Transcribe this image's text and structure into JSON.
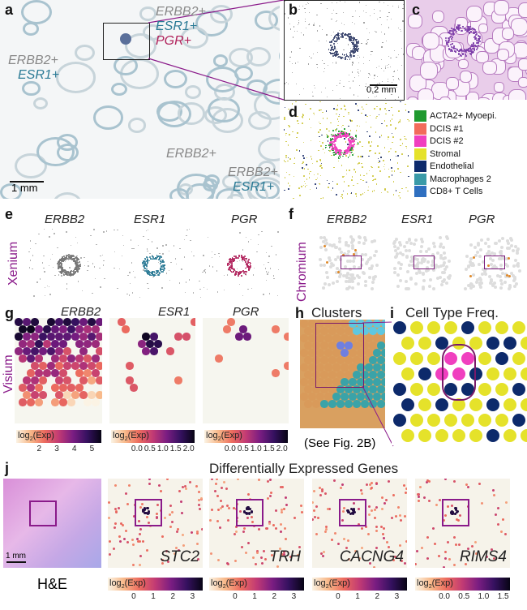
{
  "panel_labels": {
    "a": "a",
    "b": "b",
    "c": "c",
    "d": "d",
    "e": "e",
    "f": "f",
    "g": "g",
    "h": "h",
    "i": "i",
    "j": "j"
  },
  "panel_a": {
    "inset_labels": [
      "ERBB2+",
      "ESR1+",
      "PGR+"
    ],
    "region1": [
      "ERBB2+",
      "ESR1+"
    ],
    "region2": "ERBB2+",
    "region3": [
      "ERBB2+",
      "ESR1+"
    ],
    "scale": "1 mm"
  },
  "panel_b": {
    "scale": "0.2 mm"
  },
  "panel_d": {
    "legend": [
      {
        "label": "ACTA2+ Myoepi.",
        "color": "#1f9a2f"
      },
      {
        "label": "DCIS #1",
        "color": "#f26b5b"
      },
      {
        "label": "DCIS #2",
        "color": "#f03fbf"
      },
      {
        "label": "Stromal",
        "color": "#e5e22a"
      },
      {
        "label": "Endothelial",
        "color": "#0d2a6b"
      },
      {
        "label": "Macrophages 2",
        "color": "#3a9aa8"
      },
      {
        "label": "CD8+ T Cells",
        "color": "#2f6fc0"
      }
    ]
  },
  "panel_e": {
    "platform": "Xenium",
    "genes": [
      "ERBB2",
      "ESR1",
      "PGR"
    ]
  },
  "panel_f": {
    "platform": "Chromium",
    "genes": [
      "ERBB2",
      "ESR1",
      "PGR"
    ]
  },
  "panel_g": {
    "platform": "Visium",
    "genes": [
      "ERBB2",
      "ESR1",
      "PGR"
    ],
    "colorbar_label": "log2(Exp)",
    "ticks": [
      [
        "2",
        "3",
        "4",
        "5"
      ],
      [
        "0.0",
        "0.5",
        "1.0",
        "1.5",
        "2.0"
      ],
      [
        "0.0",
        "0.5",
        "1.0",
        "1.5",
        "2.0"
      ]
    ]
  },
  "panel_h": {
    "title": "Clusters",
    "note": "(See Fig. 2B)"
  },
  "panel_i": {
    "title": "Cell Type Freq."
  },
  "panel_j": {
    "title": "Differentially Expressed Genes",
    "he_label": "H&E",
    "scale": "1 mm",
    "genes": [
      "STC2",
      "TRH",
      "CACNG4",
      "RIMS4"
    ],
    "ticks": [
      [
        "0",
        "1",
        "2",
        "3"
      ],
      [
        "0",
        "1",
        "2",
        "3"
      ],
      [
        "0",
        "1",
        "2",
        "3"
      ],
      [
        "0.0",
        "0.5",
        "1.0",
        "1.5"
      ]
    ]
  }
}
